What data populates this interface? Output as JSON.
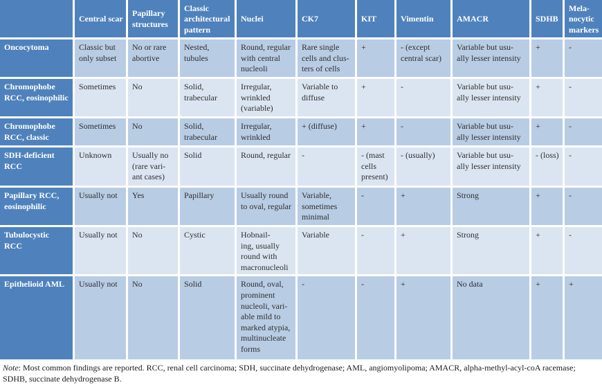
{
  "colors": {
    "header_blue": "#4f82bc",
    "row_shade_dark": "#b8cce4",
    "row_shade_light": "#dbe5f1",
    "header_text": "#ffffff",
    "body_text": "#2f2f2f"
  },
  "table": {
    "columns": [
      {
        "key": "row-label",
        "label": ""
      },
      {
        "key": "central-scar",
        "label": "Central scar"
      },
      {
        "key": "papillary-structures",
        "label": "Papillary\nstructures"
      },
      {
        "key": "classic-architectural-pattern",
        "label": "Classic\narchitectural\npattern"
      },
      {
        "key": "nuclei",
        "label": "Nuclei"
      },
      {
        "key": "ck7",
        "label": "CK7"
      },
      {
        "key": "kit",
        "label": "KIT"
      },
      {
        "key": "vimentin",
        "label": "Vimentin"
      },
      {
        "key": "amacr",
        "label": "AMACR"
      },
      {
        "key": "sdhb",
        "label": "SDHB"
      },
      {
        "key": "melanocytic-markers",
        "label": "Mela-\nnocytic\nmarkers"
      }
    ],
    "rows": [
      {
        "key": "oncocytoma",
        "label": "Oncocytoma",
        "cells": [
          "Classic but\nonly subset",
          "No or rare\nabortive",
          "Nested,\ntubules",
          "Round, regular\nwith central\nnucleoli",
          "Rare single\ncells and clus-\nters of cells",
          "+",
          "- (except\ncentral scar)",
          "Variable but usu-\nally lesser intensity",
          "+",
          "-"
        ]
      },
      {
        "key": "chromophobe-rcc-eosinophilic",
        "label": "Chromophobe\nRCC, eosinophilic",
        "cells": [
          "Sometimes",
          "No",
          "Solid,\ntrabecular",
          "Irregular,\nwrinkled\n(variable)",
          "Variable to\ndiffuse",
          "+",
          "-",
          "Variable but usu-\nally lesser intensity",
          "+",
          "-"
        ]
      },
      {
        "key": "chromophobe-rcc-classic",
        "label": "Chromophobe\nRCC, classic",
        "cells": [
          "Sometimes",
          "No",
          "Solid,\ntrabecular",
          "Irregular,\nwrinkled",
          "+ (diffuse)",
          "+",
          "-",
          "Variable but usu-\nally lesser intensity",
          "+",
          "-"
        ]
      },
      {
        "key": "sdh-deficient-rcc",
        "label": "SDH-deficient\nRCC",
        "cells": [
          "Unknown",
          "Usually no\n(rare vari-\nant cases)",
          "Solid",
          "Round, regular",
          "-",
          "- (mast\ncells\npresent)",
          "- (usually)",
          "Variable but usu-\nally lesser intensity",
          "- (loss)",
          "-"
        ]
      },
      {
        "key": "papillary-rcc-eosinophilic",
        "label": "Papillary RCC,\neosinophilic",
        "cells": [
          "Usually not",
          "Yes",
          "Papillary",
          "Usually round\nto oval, regular",
          "Variable,\nsometimes\nminimal",
          "-",
          "+",
          "Strong",
          "+",
          "-"
        ]
      },
      {
        "key": "tubulocystic-rcc",
        "label": "Tubulocystic\nRCC",
        "cells": [
          "Usually not",
          "No",
          "Cystic",
          "Hobnail-\ning, usually\nround with\nmacronucleoli",
          "Variable",
          "-",
          "+",
          "Strong",
          "+",
          "-"
        ]
      },
      {
        "key": "epithelioid-aml",
        "label": "Epithelioid AML",
        "cells": [
          "Usually not",
          "No",
          "Solid",
          "Round, oval,\nprominent\nnucleoli, vari-\nable mild to\nmarked atypia,\nmultinucleate\nforms",
          "-",
          "-",
          "+",
          "No data",
          "+",
          "+"
        ]
      }
    ]
  },
  "note": {
    "label": "Note",
    "rest": ": Most common findings are reported. RCC, renal cell carcinoma; SDH, succinate dehydrogenase; AML, angiomyolipoma; AMACR, alpha-methyl-acyl-coA racemase; SDHB, succinate dehydrogenase B."
  }
}
